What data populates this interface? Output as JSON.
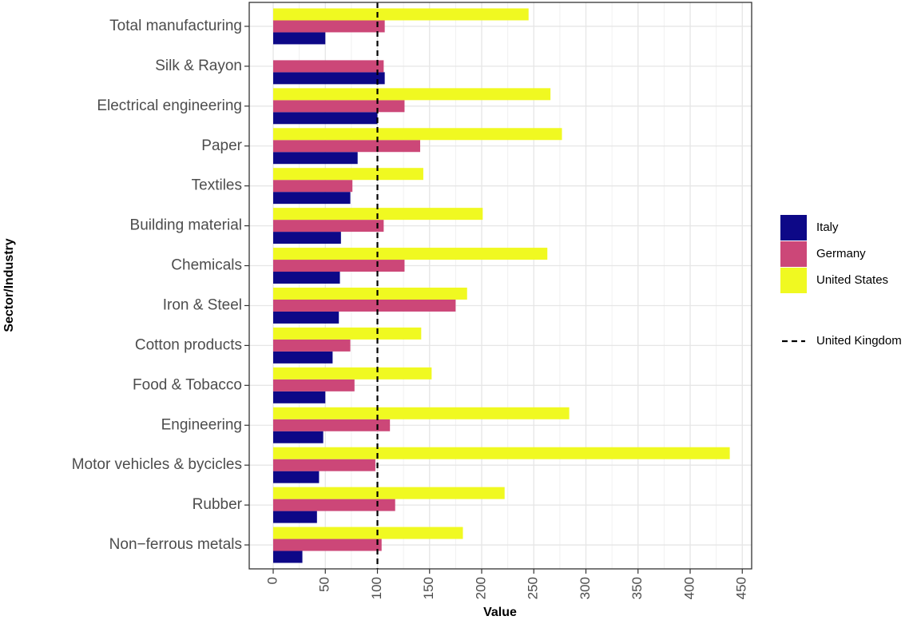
{
  "chart_data": {
    "type": "bar",
    "orientation": "horizontal",
    "x_label": "Value",
    "y_label": "Sector/Industry",
    "categories": [
      "Total manufacturing",
      "Silk & Rayon",
      "Electrical engineering",
      "Paper",
      "Textiles",
      "Building material",
      "Chemicals",
      "Iron & Steel",
      "Cotton products",
      "Food & Tobacco",
      "Engineering",
      "Motor vehicles & bycicles",
      "Rubber",
      "Non−ferrous metals"
    ],
    "series": [
      {
        "name": "Italy",
        "color": "#0d0887",
        "values": [
          50,
          107,
          100,
          81,
          74,
          65,
          64,
          63,
          57,
          50,
          48,
          44,
          42,
          28
        ]
      },
      {
        "name": "Germany",
        "color": "#cc4778",
        "values": [
          107,
          106,
          126,
          141,
          76,
          106,
          126,
          175,
          74,
          78,
          112,
          98,
          117,
          104
        ]
      },
      {
        "name": "United States",
        "color": "#f0f921",
        "values": [
          245,
          null,
          266,
          277,
          144,
          201,
          263,
          186,
          142,
          152,
          284,
          438,
          222,
          182
        ]
      }
    ],
    "reference_line": {
      "name": "United Kingdom",
      "value": 100
    },
    "xlim": [
      -23,
      459
    ],
    "xticks": [
      0,
      50,
      100,
      150,
      200,
      250,
      300,
      350,
      400,
      450
    ],
    "grid": true
  }
}
